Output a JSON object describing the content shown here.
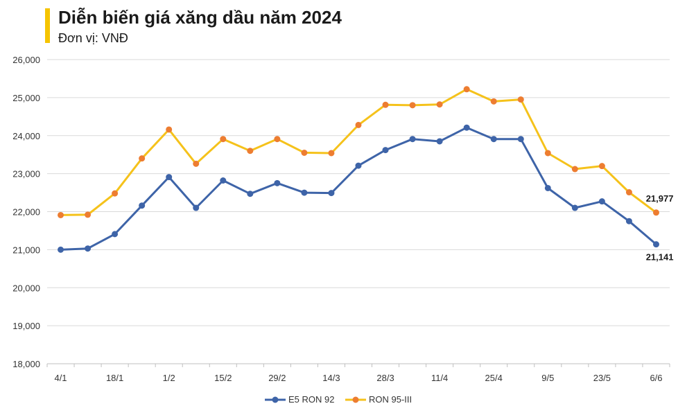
{
  "header": {
    "title": "Diễn biến giá xăng dầu năm 2024",
    "subtitle": "Đơn vị: VNĐ"
  },
  "chart_data": {
    "type": "line",
    "title": "Diễn biến giá xăng dầu năm 2024",
    "subtitle": "Đơn vị: VNĐ",
    "xlabel": "",
    "ylabel": "",
    "ylim": [
      18000,
      26000
    ],
    "yticks": [
      18000,
      19000,
      20000,
      21000,
      22000,
      23000,
      24000,
      25000,
      26000
    ],
    "ytick_labels": [
      "18,000",
      "19,000",
      "20,000",
      "21,000",
      "22,000",
      "23,000",
      "24,000",
      "25,000",
      "26,000"
    ],
    "grid": true,
    "legend_position": "bottom",
    "x_tick_labels": [
      "4/1",
      "",
      "18/1",
      "",
      "1/2",
      "",
      "15/2",
      "",
      "29/2",
      "",
      "14/3",
      "",
      "28/3",
      "",
      "11/4",
      "",
      "25/4",
      "",
      "9/5",
      "",
      "23/5",
      "",
      "6/6"
    ],
    "series": [
      {
        "name": "E5 RON 92",
        "color": "#3e64a8",
        "values": [
          21000,
          21030,
          21410,
          22160,
          22910,
          22100,
          22820,
          22470,
          22750,
          22500,
          22490,
          23210,
          23620,
          23910,
          23850,
          24210,
          23910,
          23910,
          22620,
          22100,
          22270,
          21750,
          21141
        ],
        "end_label": "21,141"
      },
      {
        "name": "RON 95-III",
        "color": "#f5c21b",
        "marker_color": "#ed7d31",
        "values": [
          21910,
          21920,
          22480,
          23400,
          24160,
          23260,
          23910,
          23600,
          23910,
          23550,
          23540,
          24280,
          24810,
          24800,
          24820,
          25220,
          24900,
          24950,
          23540,
          23120,
          23200,
          22510,
          21977
        ],
        "end_label": "21,977"
      }
    ]
  }
}
